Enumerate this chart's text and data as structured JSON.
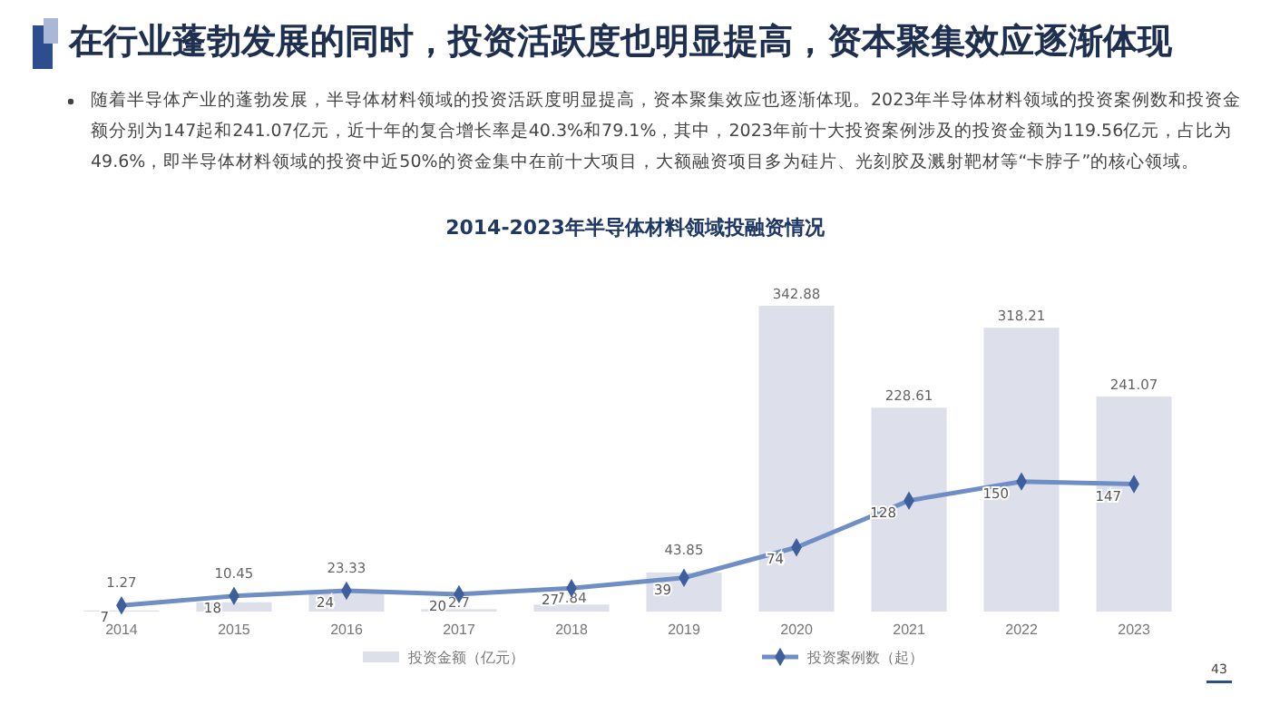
{
  "chart_data": {
    "type": "bar",
    "title": "在行业蓬勃发展的同时，投资活跃度也明显提高，资本聚集效应逐渐体现",
    "subtitle": "2014-2023年半导体材料领域投融资情况",
    "annotations": [
      "随着半导体产业的蓬勃发展，半导体材料领域的投资活跃度明显提高，资本聚集效应也逐渐体现。2023年半导体材料领域的投资案例数和投资金额分别为147起和241.07亿元，近十年的复合增长率是40.3%和79.1%，其中，2023年前十大投资案例涉及的投资金额为119.56亿元，占比为49.6%，即半导体材料领域的投资中近50%的资金集中在前十大项目，大额融资项目多为硅片、光刻胶及溅射靶材等“卡脖子”的核心领域。",
      "43"
    ],
    "categories": [
      "2014",
      "2015",
      "2016",
      "2017",
      "2018",
      "2019",
      "2020",
      "2021",
      "2022",
      "2023"
    ],
    "series": [
      {
        "name": "投资金额（亿元）",
        "color": "#dde0ea",
        "values": [
          1.27,
          10.45,
          23.33,
          2.7,
          7.84,
          43.85,
          342.88,
          228.61,
          318.21,
          241.07
        ]
      },
      {
        "name": "投资案例数（起）",
        "type": "line",
        "axis": "y2",
        "color": "#6f8fc4",
        "values": [
          7,
          18,
          24,
          20,
          27,
          39,
          74,
          128,
          150,
          147
        ]
      }
    ],
    "ylim": [
      0,
      350
    ],
    "y2lim": [
      0,
      360
    ],
    "tick_labels": "x",
    "data_labels": true,
    "legend": "bottom",
    "marker": "diamond",
    "line_style": "solid",
    "grid": false
  }
}
